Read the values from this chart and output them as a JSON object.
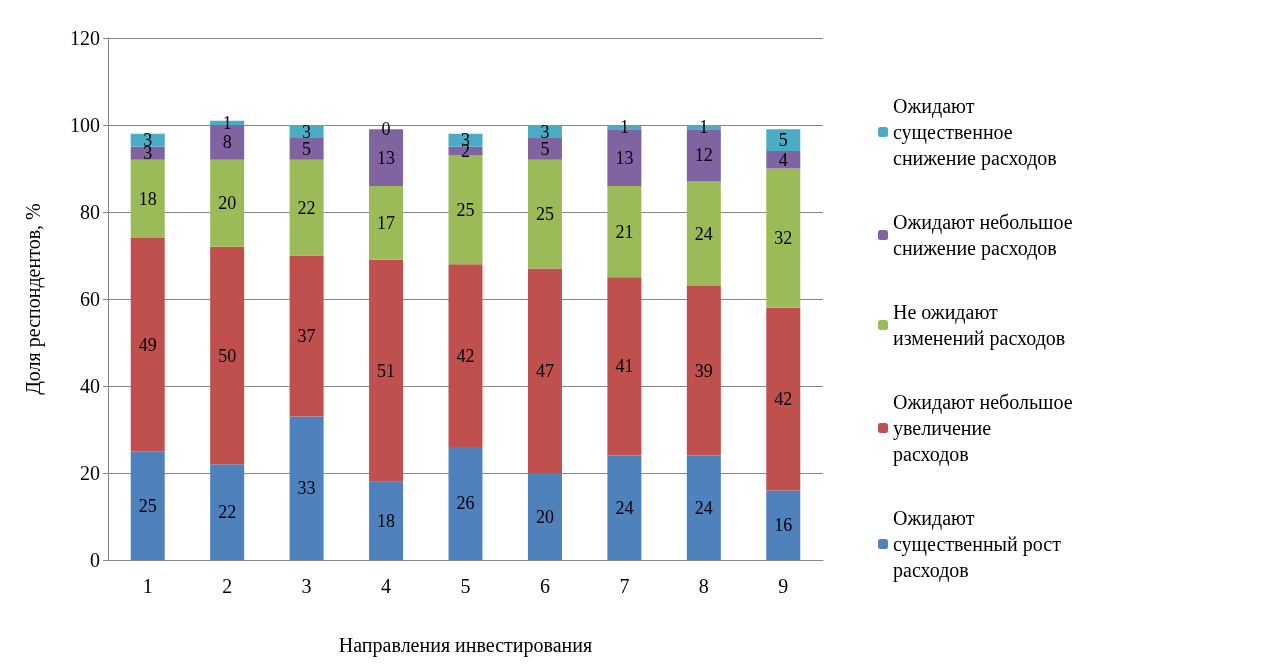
{
  "chart_data": {
    "type": "bar",
    "stacked": true,
    "xlabel": "Направления инвестирования",
    "ylabel": "Доля респондентов, %",
    "categories": [
      "1",
      "2",
      "3",
      "4",
      "5",
      "6",
      "7",
      "8",
      "9"
    ],
    "ylim": [
      0,
      120
    ],
    "yticks": [
      0,
      20,
      40,
      60,
      80,
      100,
      120
    ],
    "grid": "y",
    "legend": "right",
    "data_labels": true,
    "series": [
      {
        "name": "Ожидают существенный рост расходов",
        "color": "#4f81bd",
        "values": [
          25,
          22,
          33,
          18,
          26,
          20,
          24,
          24,
          16
        ]
      },
      {
        "name": "Ожидают небольшое увеличение расходов",
        "color": "#c0504d",
        "values": [
          49,
          50,
          37,
          51,
          42,
          47,
          41,
          39,
          42
        ]
      },
      {
        "name": "Не ожидают изменений расходов",
        "color": "#9bbb59",
        "values": [
          18,
          20,
          22,
          17,
          25,
          25,
          21,
          24,
          32
        ]
      },
      {
        "name": "Ожидают небольшое снижение расходов",
        "color": "#8064a2",
        "values": [
          3,
          8,
          5,
          13,
          2,
          5,
          13,
          12,
          4
        ]
      },
      {
        "name": "Ожидают существенное снижение расходов",
        "color": "#4bacc6",
        "values": [
          3,
          1,
          3,
          0,
          3,
          3,
          1,
          1,
          5
        ]
      }
    ]
  }
}
